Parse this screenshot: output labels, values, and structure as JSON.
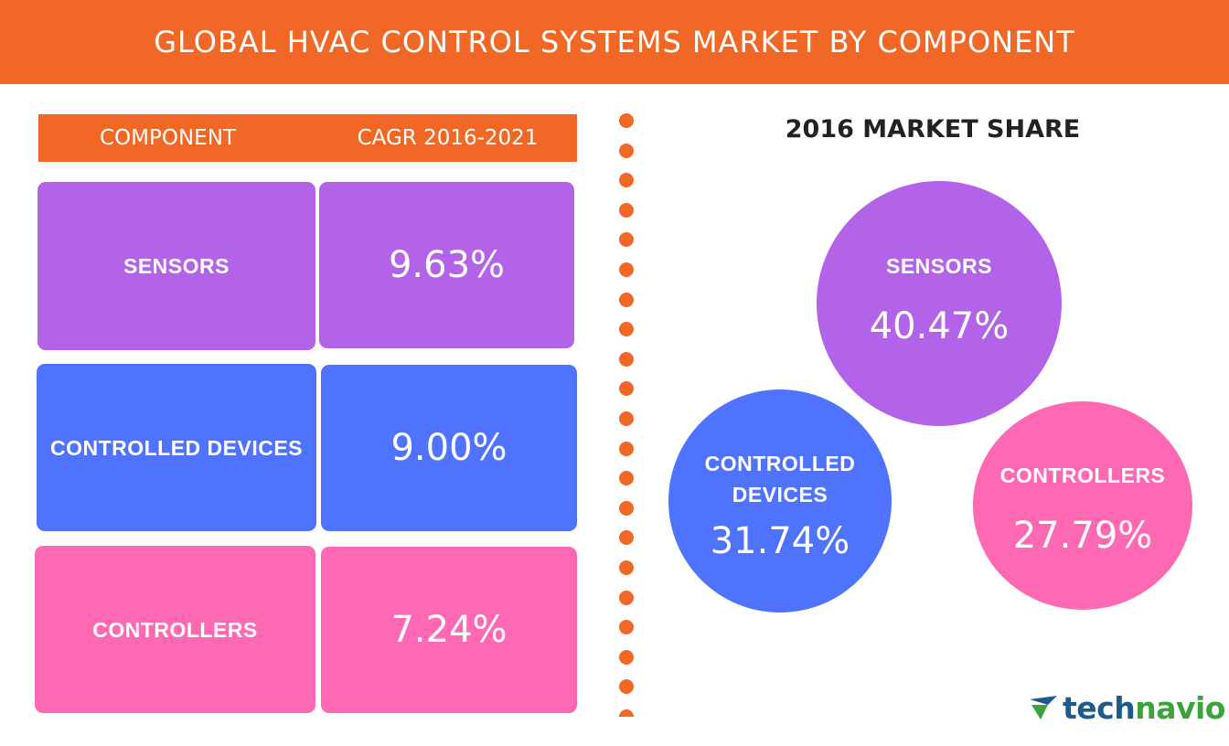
{
  "header": {
    "title": "GLOBAL HVAC CONTROL SYSTEMS MARKET BY COMPONENT"
  },
  "table": {
    "col_component": "COMPONENT",
    "col_cagr": "CAGR 2016-2021",
    "rows": [
      {
        "component": "SENSORS",
        "cagr": "9.63%",
        "color": "#b263e8"
      },
      {
        "component": "CONTROLLED DEVICES",
        "cagr": "9.00%",
        "color": "#5073ff"
      },
      {
        "component": "CONTROLLERS",
        "cagr": "7.24%",
        "color": "#ff69b4"
      }
    ]
  },
  "market_share": {
    "title": "2016 MARKET SHARE",
    "bubbles": [
      {
        "name": "SENSORS",
        "value": "40.47%",
        "color": "#b263e8"
      },
      {
        "name": "CONTROLLED DEVICES",
        "value": "31.74%",
        "color": "#5073ff"
      },
      {
        "name": "CONTROLLERS",
        "value": "27.79%",
        "color": "#ff69b4"
      }
    ]
  },
  "chart_data": [
    {
      "type": "table",
      "title": "",
      "columns": [
        "COMPONENT",
        "CAGR 2016-2021"
      ],
      "categories": [
        "SENSORS",
        "CONTROLLED DEVICES",
        "CONTROLLERS"
      ],
      "values": [
        9.63,
        9.0,
        7.24
      ],
      "unit": "%"
    },
    {
      "type": "pie",
      "title": "2016 MARKET SHARE",
      "categories": [
        "SENSORS",
        "CONTROLLED DEVICES",
        "CONTROLLERS"
      ],
      "values": [
        40.47,
        31.74,
        27.79
      ],
      "unit": "%"
    }
  ],
  "brand": {
    "logo_text_1": "tech",
    "logo_text_2": "navio"
  },
  "colors": {
    "accent": "#f16725",
    "sensors": "#b263e8",
    "controlled_devices": "#5073ff",
    "controllers": "#ff69b4"
  }
}
